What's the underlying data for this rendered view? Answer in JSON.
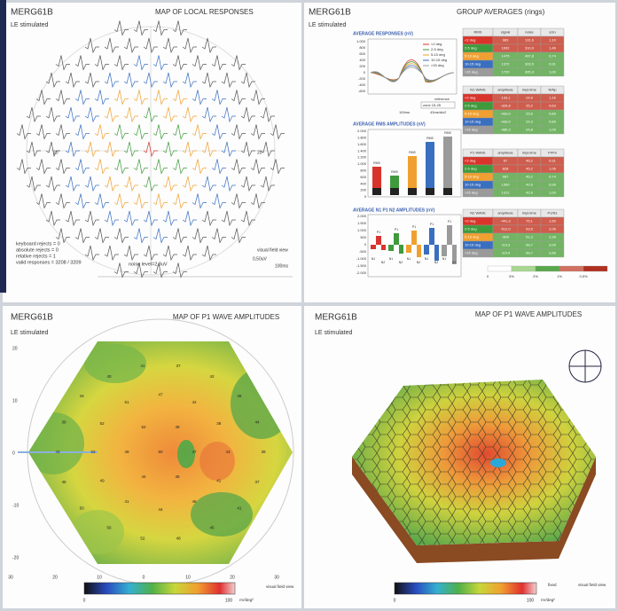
{
  "local_responses": {
    "header": "MERG61B",
    "subtitle": "LE stimulated",
    "title": "MAP OF LOCAL RESPONSES",
    "axis_label": "20",
    "stats": [
      "keyboard rejects = 0",
      "absolute rejects = 0",
      "relative rejects = 1",
      "valid responses = 3208 / 3209"
    ],
    "noise": "noise level=2,3uV",
    "view": "visual field view",
    "scale_v": "0,50uV",
    "scale_t": "100ms"
  },
  "group_averages": {
    "header": "MERG61B",
    "subtitle": "LE stimulated",
    "title": "GROUP AVERAGES (rings)",
    "responses_title": "AVERAGE RESPONSES (nV)",
    "rms_title": "AVERAGE RMS AMPLITUDES (nV)",
    "npn_title": "AVERAGE N1 P1 N2 AMPLITUDES (nV)",
    "ring_names": [
      "<2 deg",
      "2-5 deg",
      "5-10 deg",
      "10-15 deg",
      ">15 deg"
    ],
    "ring_colors": [
      "#d9342b",
      "#3f9a3c",
      "#f0a030",
      "#3a6fc0",
      "#9a9a9a"
    ],
    "response_yticks": [
      "1.000",
      "800",
      "600",
      "400",
      "200",
      "0",
      "-200",
      "-400",
      "-600"
    ],
    "bar_yticks": [
      "2.000",
      "1.800",
      "1.600",
      "1.400",
      "1.200",
      "1.000",
      "800",
      "600",
      "400",
      "200",
      "0"
    ],
    "npn_yticks": [
      "2.000",
      "1.500",
      "1.000",
      "500",
      "0",
      "-500",
      "-1.000",
      "-1.500",
      "-2.000"
    ],
    "reference": "reference",
    "reference_value": "zone 15-25",
    "time_labels": [
      "100ms",
      "43ms/div2"
    ],
    "rms_labels": [
      "RMS",
      "RMS",
      "RMS",
      "RMS",
      "RMS"
    ],
    "npn_labels": [
      "P1",
      "N1",
      "N2"
    ],
    "tables": [
      {
        "headers": [
          "RMS",
          "signal",
          "noise",
          "s/sn"
        ],
        "rows": [
          [
            "983",
            "131,6",
            "1,10"
          ],
          [
            "1002",
            "310,0",
            "1,46"
          ],
          [
            "1475",
            "497,8",
            "0,74"
          ],
          [
            "1372",
            "303,5",
            "0,91"
          ],
          [
            "1720",
            "305,3",
            "1,00"
          ]
        ]
      },
      {
        "headers": [
          "N1 WAVE",
          "amplitude",
          "impl.time",
          "N/Np"
        ],
        "rows": [
          [
            "-133,1",
            "24,9",
            "1,16"
          ],
          [
            "-326,8",
            "25,2",
            "0,63"
          ],
          [
            "-433,0",
            "25,6",
            "0,89"
          ],
          [
            "-433,0",
            "24,3",
            "0,89"
          ],
          [
            "-486,3",
            "24,8",
            "1,00"
          ]
        ]
      },
      {
        "headers": [
          "P1 WAVE",
          "amplitude",
          "impl.time",
          "P/Pm"
        ],
        "rows": [
          [
            "67",
            "46,2",
            "0,31"
          ],
          [
            "828",
            "45,2",
            "1,06"
          ],
          [
            "987",
            "45,2",
            "0,74"
          ],
          [
            "1300",
            "42,9",
            "0,99"
          ],
          [
            "1312",
            "42,9",
            "1,00"
          ]
        ]
      },
      {
        "headers": [
          "N2 WAVE",
          "amplitude",
          "impl.time",
          "P1/N1"
        ],
        "rows": [
          [
            "-441,3",
            "75,1",
            "1,50"
          ],
          [
            "-512,0",
            "63,5",
            "2,06"
          ],
          [
            "-800",
            "51,3",
            "2,28"
          ],
          [
            "-1213",
            "56,7",
            "2,00"
          ],
          [
            "-1214",
            "56,7",
            "2,66"
          ]
        ]
      }
    ],
    "significance": [
      "0",
      "5%",
      "2%",
      "1%",
      "0,5%"
    ]
  },
  "p1_map": {
    "header": "MERG61B",
    "subtitle": "LE stimulated",
    "title": "MAP OF P1 WAVE AMPLITUDES",
    "yticks": [
      "20",
      "10",
      "0",
      "-10",
      "-20"
    ],
    "xticks": [
      "30",
      "20",
      "10",
      "0",
      "10",
      "20",
      "30"
    ],
    "values": [
      "50",
      "47",
      "45",
      "44",
      "49",
      "52",
      "48",
      "43",
      "41",
      "46",
      "44",
      "41",
      "49",
      "53",
      "52",
      "51",
      "47",
      "42",
      "38",
      "39",
      "37",
      "41",
      "45",
      "48",
      "52",
      "56",
      "50",
      "45",
      "43",
      "39",
      "44",
      "40",
      "41",
      "37",
      "42",
      "46",
      "44"
    ],
    "scale_min": "0",
    "scale_max": "100",
    "unit": "nV/deg²",
    "view": "visual field view"
  },
  "p1_3d": {
    "header": "MERG61B",
    "subtitle": "LE stimulated",
    "title": "MAP OF P1 WAVE AMPLITUDES",
    "scale_min": "0",
    "scale_max": "100",
    "unit": "nV/deg²",
    "fixed": "fixed",
    "view": "visual field view"
  }
}
